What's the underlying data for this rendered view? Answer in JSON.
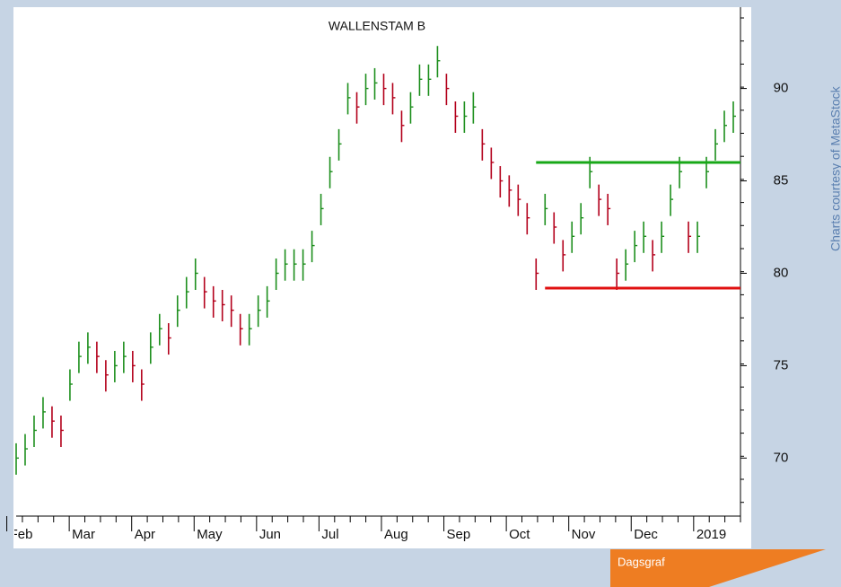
{
  "chart_data": {
    "type": "ohlc",
    "title": "WALLENSTAM B",
    "source": "Charts courtesy of MetaStock",
    "tag": "Dagsgraf",
    "months": [
      "Feb",
      "Mar",
      "Apr",
      "May",
      "Jun",
      "Jul",
      "Aug",
      "Sep",
      "Oct",
      "Nov",
      "Dec",
      "2019"
    ],
    "close": [
      70,
      70.5,
      71.5,
      72.5,
      72,
      71.5,
      74,
      75.5,
      76,
      75.5,
      74.5,
      75,
      75.5,
      75,
      74,
      76,
      77,
      76.5,
      78,
      79,
      80,
      79,
      78.5,
      78.3,
      78,
      77,
      77,
      78,
      78.5,
      80,
      80.5,
      80.5,
      80.5,
      81.5,
      83.5,
      85.5,
      87,
      89.5,
      89,
      90,
      90.3,
      90,
      89.5,
      88,
      89,
      90.5,
      90.5,
      91.5,
      90,
      88.5,
      88.5,
      89,
      87,
      86,
      85,
      84.5,
      84,
      83,
      80,
      83.5,
      82.5,
      81,
      82,
      83,
      85.5,
      84,
      83.5,
      80,
      80.5,
      81.5,
      82,
      81,
      82,
      84,
      85.5,
      82,
      82,
      85.5,
      87,
      88,
      88.5
    ],
    "high": [
      70.8,
      71.3,
      72.3,
      73.3,
      72.8,
      72.3,
      74.8,
      76.3,
      76.8,
      76.3,
      75.3,
      75.8,
      76.3,
      75.8,
      74.8,
      76.8,
      77.8,
      77.3,
      78.8,
      79.8,
      80.8,
      79.8,
      79.3,
      79.1,
      78.8,
      77.8,
      77.8,
      78.8,
      79.3,
      80.8,
      81.3,
      81.3,
      81.3,
      82.3,
      84.3,
      86.3,
      87.8,
      90.3,
      89.8,
      90.8,
      91.1,
      90.8,
      90.3,
      88.8,
      89.8,
      91.3,
      91.3,
      92.3,
      90.8,
      89.3,
      89.3,
      89.8,
      87.8,
      86.8,
      85.8,
      85.3,
      84.8,
      83.8,
      80.8,
      84.3,
      83.3,
      81.8,
      82.8,
      83.8,
      86.3,
      84.8,
      84.3,
      80.8,
      81.3,
      82.3,
      82.8,
      81.8,
      82.8,
      84.8,
      86.3,
      82.8,
      82.8,
      86.3,
      87.8,
      88.8,
      89.3
    ],
    "low": [
      69.1,
      69.6,
      70.6,
      71.6,
      71.1,
      70.6,
      73.1,
      74.6,
      75.1,
      74.6,
      73.6,
      74.1,
      74.6,
      74.1,
      73.1,
      75.1,
      76.1,
      75.6,
      77.1,
      78.1,
      79.1,
      78.1,
      77.6,
      77.4,
      77.1,
      76.1,
      76.1,
      77.1,
      77.6,
      79.1,
      79.6,
      79.6,
      79.6,
      80.6,
      82.6,
      84.6,
      86.1,
      88.6,
      88.1,
      89.1,
      89.4,
      89.1,
      88.6,
      87.1,
      88.1,
      89.6,
      89.6,
      90.6,
      89.1,
      87.6,
      87.6,
      88.1,
      86.1,
      85.1,
      84.1,
      83.6,
      83.1,
      82.1,
      79.1,
      82.6,
      81.6,
      80.1,
      81.1,
      82.1,
      84.6,
      83.1,
      82.6,
      79.1,
      79.6,
      80.6,
      81.1,
      80.1,
      81.1,
      83.1,
      84.6,
      81.1,
      81.1,
      84.6,
      86.1,
      87.1,
      87.6
    ],
    "up_color": "#1d8f1d",
    "down_color": "#b3001b",
    "hlines": [
      {
        "value": 86,
        "start": 58,
        "color": "#18a818"
      },
      {
        "value": 79.2,
        "start": 59,
        "color": "#e01010"
      }
    ],
    "ylim": [
      67.2,
      94.4
    ],
    "yticks": [
      70,
      75,
      80,
      85,
      90
    ]
  }
}
